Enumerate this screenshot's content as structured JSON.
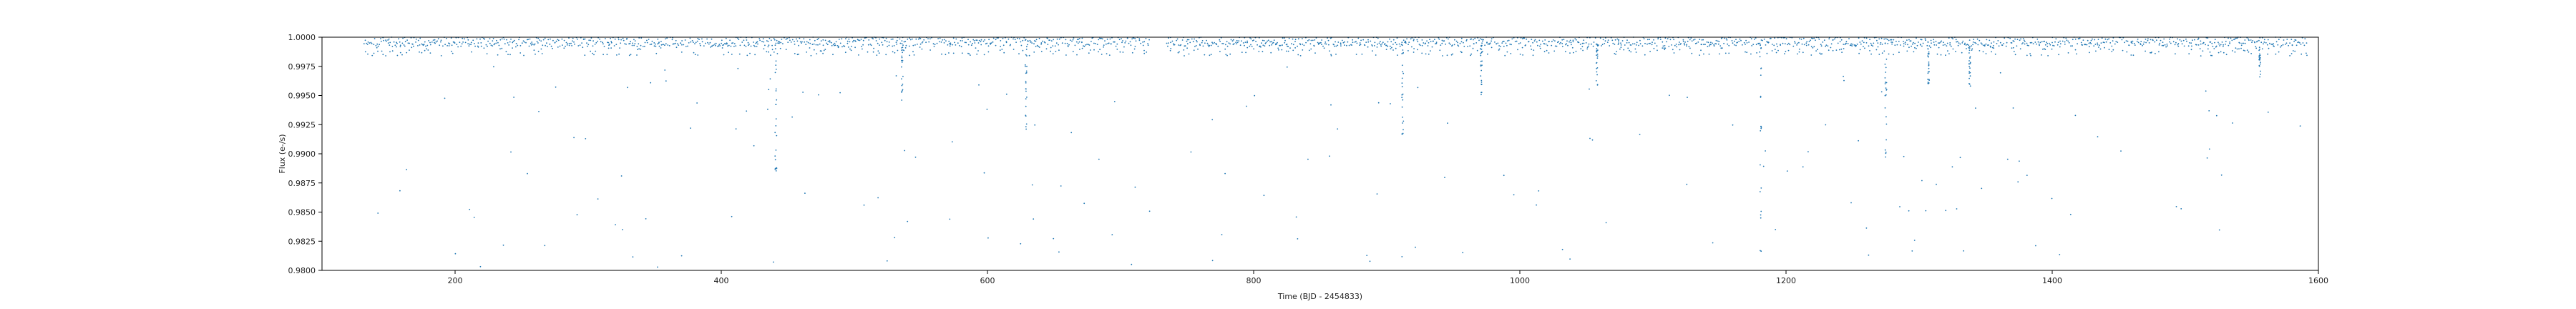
{
  "chart_data": {
    "type": "scatter",
    "title": "",
    "xlabel": "Time (BJD - 2454833)",
    "ylabel": "Flux (e-/s)",
    "xlim": [
      100,
      1600
    ],
    "ylim": [
      0.98,
      1.0
    ],
    "xticks": [
      200,
      400,
      600,
      800,
      1000,
      1200,
      1400,
      1600
    ],
    "yticks": [
      0.98,
      0.9825,
      0.985,
      0.9875,
      0.99,
      0.9925,
      0.995,
      0.9975,
      1.0
    ],
    "xtick_labels": [
      "200",
      "400",
      "600",
      "800",
      "1000",
      "1200",
      "1400",
      "1600"
    ],
    "ytick_labels": [
      "0.9800",
      "0.9825",
      "0.9850",
      "0.9875",
      "0.9900",
      "0.9925",
      "0.9950",
      "0.9975",
      "1.0000"
    ],
    "grid": false,
    "marker_color": "#1f77b4",
    "series": [
      {
        "segments": [
          [
            131,
            722
          ],
          [
            734,
            1591
          ]
        ],
        "baseline_flux": [
          0.9992,
          1.0
        ],
        "transit_dips": [
          {
            "x": 441,
            "min_flux": 0.9885
          },
          {
            "x": 536,
            "min_flux": 0.9945
          },
          {
            "x": 629,
            "min_flux": 0.9915
          },
          {
            "x": 912,
            "min_flux": 0.9915
          },
          {
            "x": 971,
            "min_flux": 0.995
          },
          {
            "x": 1058,
            "min_flux": 0.9955
          },
          {
            "x": 1181,
            "min_flux": 0.9815
          },
          {
            "x": 1275,
            "min_flux": 0.9895
          },
          {
            "x": 1307,
            "min_flux": 0.996
          },
          {
            "x": 1338,
            "min_flux": 0.9955
          },
          {
            "x": 1556,
            "min_flux": 0.9965
          }
        ],
        "outlier_flux_range": [
          0.98,
          0.9975
        ]
      }
    ]
  }
}
